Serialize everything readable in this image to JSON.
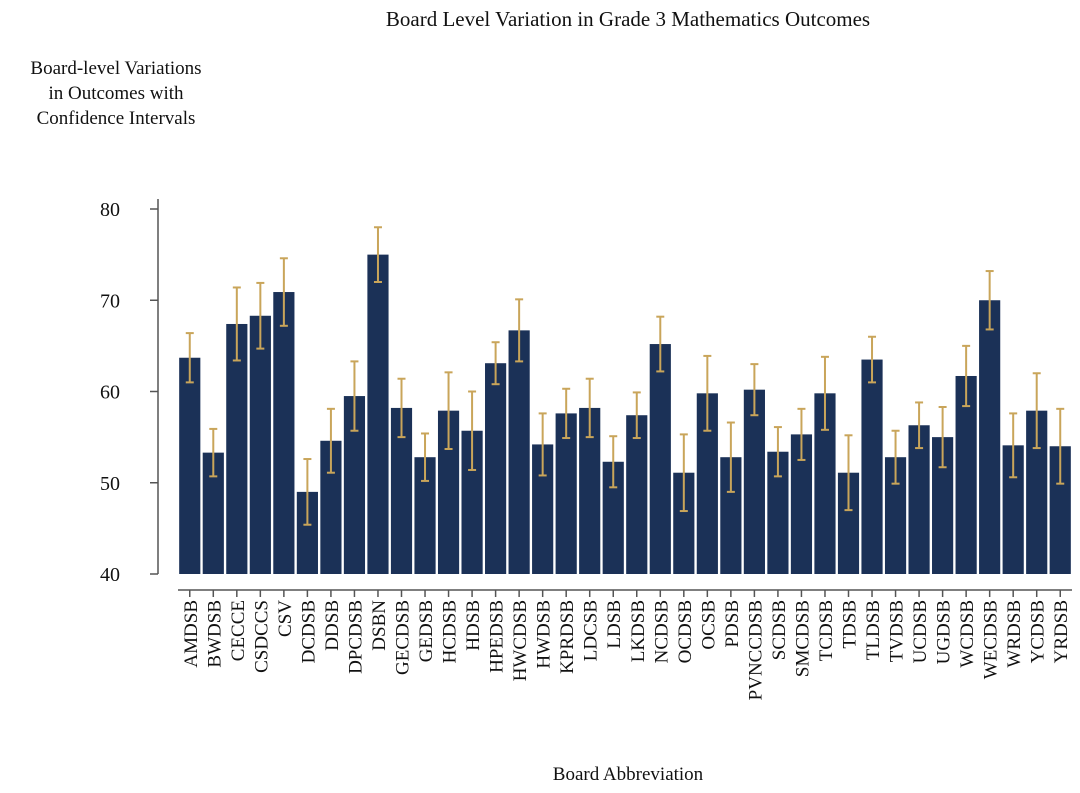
{
  "chart_data": {
    "type": "bar",
    "title": "Board Level Variation in Grade 3 Mathematics Outcomes",
    "ylabel_lines": [
      "Board-level Variations",
      "in Outcomes with",
      "Confidence Intervals"
    ],
    "xlabel": "Board Abbreviation",
    "categories": [
      "AMDSB",
      "BWDSB",
      "CECCE",
      "CSDCCS",
      "CSV",
      "DCDSB",
      "DDSB",
      "DPCDSB",
      "DSBN",
      "GECDSB",
      "GEDSB",
      "HCDSB",
      "HDSB",
      "HPEDSB",
      "HWCDSB",
      "HWDSB",
      "KPRDSB",
      "LDCSB",
      "LDSB",
      "LKDSB",
      "NCDSB",
      "OCDSB",
      "OCSB",
      "PDSB",
      "PVNCCDSB",
      "SCDSB",
      "SMCDSB",
      "TCDSB",
      "TDSB",
      "TLDSB",
      "TVDSB",
      "UCDSB",
      "UGDSB",
      "WCDSB",
      "WECDSB",
      "WRDSB",
      "YCDSB",
      "YRDSB"
    ],
    "values": [
      63.7,
      53.3,
      67.4,
      68.3,
      70.9,
      49,
      54.6,
      59.5,
      75,
      58.2,
      52.8,
      57.9,
      55.7,
      63.1,
      66.7,
      54.2,
      57.6,
      58.2,
      52.3,
      57.4,
      65.2,
      51.1,
      59.8,
      52.8,
      60.2,
      53.4,
      55.3,
      59.8,
      51.1,
      63.5,
      52.8,
      56.3,
      55,
      61.7,
      70,
      54.1,
      57.9,
      54
    ],
    "errors": [
      2.7,
      2.6,
      4,
      3.6,
      3.7,
      3.6,
      3.5,
      3.8,
      3,
      3.2,
      2.6,
      4.2,
      4.3,
      2.3,
      3.4,
      3.4,
      2.7,
      3.2,
      2.8,
      2.5,
      3,
      4.2,
      4.1,
      3.8,
      2.8,
      2.7,
      2.8,
      4,
      4.1,
      2.5,
      2.9,
      2.5,
      3.3,
      3.3,
      3.2,
      3.5,
      4.1,
      4.1
    ],
    "color": "#1b3157",
    "error_color": "#c9a55a",
    "ylim": [
      40,
      80
    ],
    "yticks": [
      40,
      50,
      60,
      70,
      80
    ]
  }
}
